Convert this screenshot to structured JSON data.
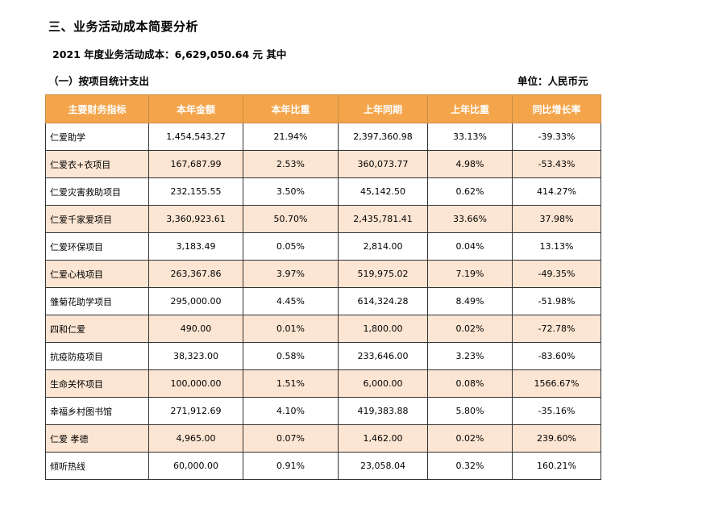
{
  "section_title": "三、业务活动成本简要分析",
  "summary": "2021 年度业务活动成本：6,629,050.64 元  其中",
  "subsection_title": "（一）按项目统计支出",
  "unit": "单位：人民币元",
  "table": {
    "headers": [
      "主要财务指标",
      "本年金额",
      "本年比重",
      "上年同期",
      "上年比重",
      "同比增长率"
    ],
    "rows": [
      {
        "name": "仁爱助学",
        "amount": "1,454,543.27",
        "share": "21.94%",
        "prior_amount": "2,397,360.98",
        "prior_share": "33.13%",
        "growth": "-39.33%"
      },
      {
        "name": "仁爱衣+衣项目",
        "amount": "167,687.99",
        "share": "2.53%",
        "prior_amount": "360,073.77",
        "prior_share": "4.98%",
        "growth": "-53.43%"
      },
      {
        "name": "仁爱灾害救助项目",
        "amount": "232,155.55",
        "share": "3.50%",
        "prior_amount": "45,142.50",
        "prior_share": "0.62%",
        "growth": "414.27%"
      },
      {
        "name": "仁爱千家爱项目",
        "amount": "3,360,923.61",
        "share": "50.70%",
        "prior_amount": "2,435,781.41",
        "prior_share": "33.66%",
        "growth": "37.98%"
      },
      {
        "name": "仁爱环保项目",
        "amount": "3,183.49",
        "share": "0.05%",
        "prior_amount": "2,814.00",
        "prior_share": "0.04%",
        "growth": "13.13%"
      },
      {
        "name": "仁爱心栈项目",
        "amount": "263,367.86",
        "share": "3.97%",
        "prior_amount": "519,975.02",
        "prior_share": "7.19%",
        "growth": "-49.35%"
      },
      {
        "name": "雏菊花助学项目",
        "amount": "295,000.00",
        "share": "4.45%",
        "prior_amount": "614,324.28",
        "prior_share": "8.49%",
        "growth": "-51.98%"
      },
      {
        "name": "四和仁爱",
        "amount": "490.00",
        "share": "0.01%",
        "prior_amount": "1,800.00",
        "prior_share": "0.02%",
        "growth": "-72.78%"
      },
      {
        "name": "抗疫防疫项目",
        "amount": "38,323.00",
        "share": "0.58%",
        "prior_amount": "233,646.00",
        "prior_share": "3.23%",
        "growth": "-83.60%"
      },
      {
        "name": "生命关怀项目",
        "amount": "100,000.00",
        "share": "1.51%",
        "prior_amount": "6,000.00",
        "prior_share": "0.08%",
        "growth": "1566.67%"
      },
      {
        "name": "幸福乡村图书馆",
        "amount": "271,912.69",
        "share": "4.10%",
        "prior_amount": "419,383.88",
        "prior_share": "5.80%",
        "growth": "-35.16%"
      },
      {
        "name": "仁爱 孝德",
        "amount": "4,965.00",
        "share": "0.07%",
        "prior_amount": "1,462.00",
        "prior_share": "0.02%",
        "growth": "239.60%"
      },
      {
        "name": "倾听热线",
        "amount": "60,000.00",
        "share": "0.91%",
        "prior_amount": "23,058.04",
        "prior_share": "0.32%",
        "growth": "160.21%"
      }
    ]
  },
  "colors": {
    "header_background": "#f4a54b",
    "header_text": "#ffffff",
    "stripe_background": "#fce5d3"
  }
}
